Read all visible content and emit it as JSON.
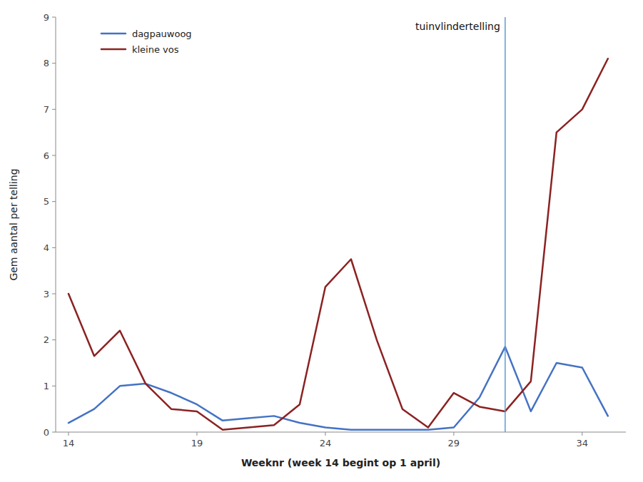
{
  "chart_data": {
    "type": "line",
    "x": [
      14,
      15,
      16,
      17,
      18,
      19,
      20,
      21,
      22,
      23,
      24,
      25,
      26,
      27,
      28,
      29,
      30,
      31,
      32,
      33,
      34,
      35
    ],
    "series": [
      {
        "name": "dagpauwoog",
        "color": "#4472C4",
        "values": [
          0.2,
          0.5,
          1.0,
          1.05,
          0.85,
          0.6,
          0.25,
          0.3,
          0.35,
          0.2,
          0.1,
          0.05,
          0.05,
          0.05,
          0.05,
          0.1,
          0.75,
          1.85,
          0.45,
          1.5,
          1.4,
          0.35
        ]
      },
      {
        "name": "kleine vos",
        "color": "#8B2222",
        "values": [
          3.0,
          1.65,
          2.2,
          1.05,
          0.5,
          0.45,
          0.05,
          0.1,
          0.15,
          0.6,
          3.15,
          3.75,
          2.0,
          0.5,
          0.1,
          0.85,
          0.55,
          0.45,
          1.1,
          6.5,
          7.0,
          8.1
        ]
      }
    ],
    "x_label": "Weeknr (week 14 begint op 1 april)",
    "y_label": "Gem aantal per telling",
    "xlim": [
      13.5,
      35.7
    ],
    "xticks": [
      14,
      19,
      24,
      29,
      34
    ],
    "ylim": [
      0,
      9
    ],
    "yticks": [
      0,
      1,
      2,
      3,
      4,
      5,
      6,
      7,
      8,
      9
    ],
    "annotations": [
      {
        "x": 31.0,
        "label": "tuinvlindertelling",
        "color": "#5B9BD5"
      }
    ],
    "grid": false,
    "legend": "upper left"
  }
}
